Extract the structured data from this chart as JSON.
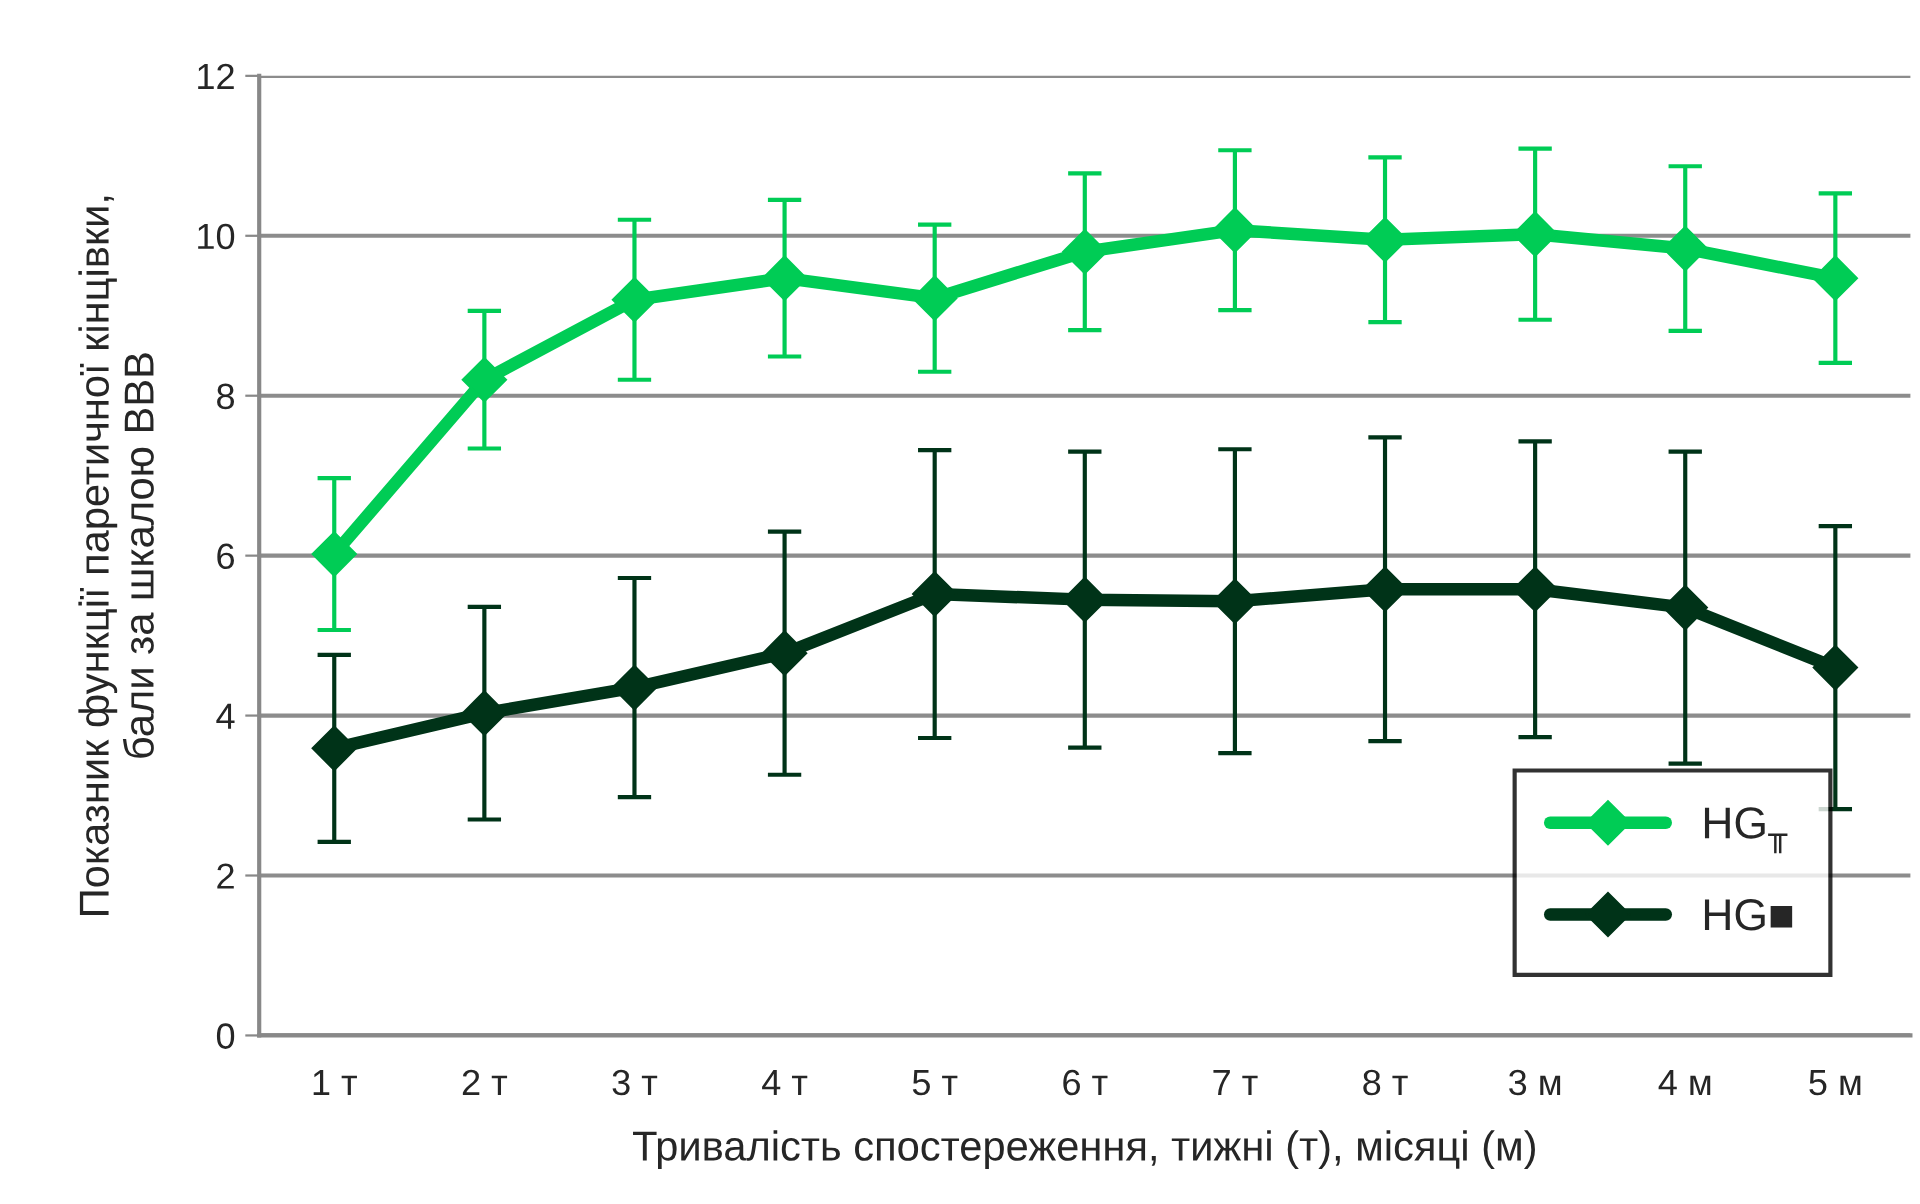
{
  "chart_data": {
    "type": "line",
    "xlabel": "Тривалість спостереження, тижні (т), місяці (м)",
    "ylabel": "Показник функції паретичної кінцівки,\nбали за шкалою ВВВ",
    "categories": [
      "1 т",
      "2 т",
      "3 т",
      "4 т",
      "5 т",
      "6 т",
      "7 т",
      "8 т",
      "3 м",
      "4 м",
      "5 м"
    ],
    "series": [
      {
        "name": "HG$_{╥}$",
        "color": "#00cc55",
        "values": [
          6.02,
          8.2,
          9.2,
          9.47,
          9.22,
          9.8,
          10.07,
          9.95,
          10.02,
          9.84,
          9.47
        ],
        "errors": [
          0.95,
          0.86,
          1.0,
          0.98,
          0.92,
          0.98,
          1.0,
          1.03,
          1.07,
          1.03,
          1.06
        ]
      },
      {
        "name": "HG■",
        "color": "#003318",
        "values": [
          3.59,
          4.03,
          4.35,
          4.78,
          5.52,
          5.45,
          5.43,
          5.58,
          5.58,
          5.35,
          4.6
        ],
        "errors": [
          1.17,
          1.33,
          1.37,
          1.52,
          1.8,
          1.85,
          1.9,
          1.9,
          1.85,
          1.95,
          1.77
        ]
      }
    ],
    "ylim": [
      0,
      12
    ],
    "yticks": [
      0,
      2,
      4,
      6,
      8,
      10,
      12
    ],
    "grid": "y",
    "legend": "bottom right",
    "marker": "diamond",
    "line_style": "solid"
  }
}
